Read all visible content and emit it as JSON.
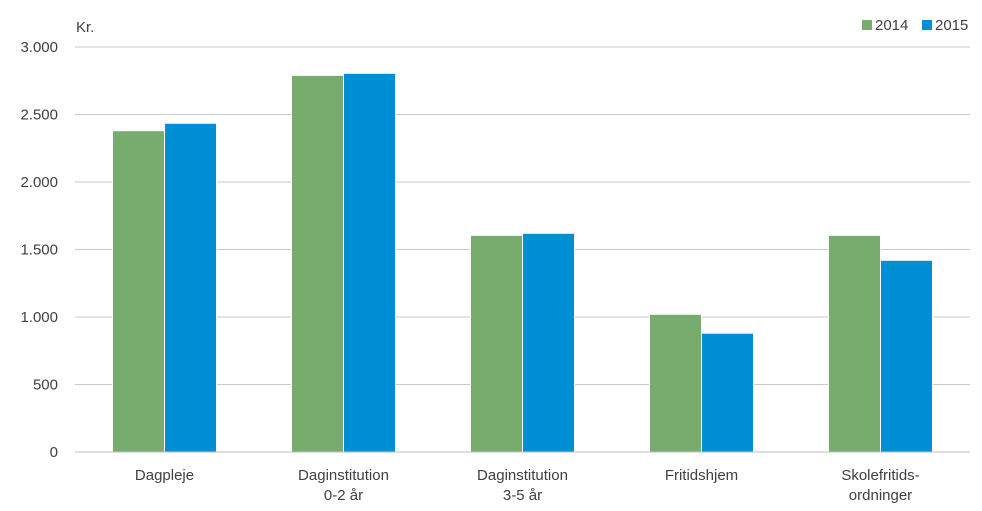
{
  "chart_data": {
    "type": "bar",
    "title": "",
    "xlabel": "",
    "ylabel": "Kr.",
    "ylim": [
      0,
      3000
    ],
    "yticks": [
      0,
      500,
      1000,
      1500,
      2000,
      2500,
      3000
    ],
    "ytick_labels": [
      "0",
      "500",
      "1.000",
      "1.500",
      "2.000",
      "2.500",
      "3.000"
    ],
    "grid": true,
    "legend_position": "top-right",
    "categories": [
      [
        "Dagpleje"
      ],
      [
        "Daginstitution",
        "0-2 år"
      ],
      [
        "Daginstitution",
        "3-5 år"
      ],
      [
        "Fritidshjem"
      ],
      [
        "Skolefritids-",
        "ordninger"
      ]
    ],
    "series": [
      {
        "name": "2014",
        "color": "#77ac6e",
        "values": [
          2380,
          2790,
          1605,
          1020,
          1605
        ]
      },
      {
        "name": "2015",
        "color": "#008fd5",
        "values": [
          2435,
          2805,
          1620,
          880,
          1420
        ]
      }
    ]
  }
}
